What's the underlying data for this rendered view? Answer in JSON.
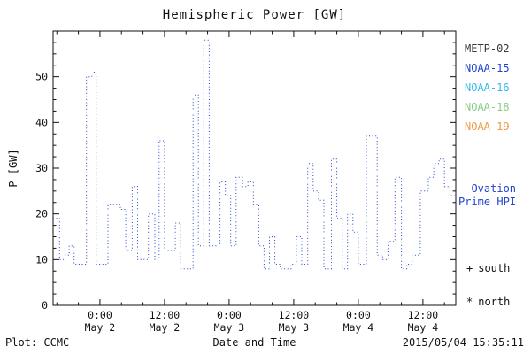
{
  "footer": {
    "left": "Plot: CCMC",
    "right": "2015/05/04 15:35:11"
  },
  "legend": {
    "items": [
      {
        "label": "METP-02",
        "color": "#3a3a3a"
      },
      {
        "label": "NOAA-15",
        "color": "#2244cc"
      },
      {
        "label": "NOAA-16",
        "color": "#33bbee"
      },
      {
        "label": "NOAA-18",
        "color": "#88cc88"
      },
      {
        "label": "NOAA-19",
        "color": "#ee9944"
      }
    ]
  },
  "annotation": {
    "line1": "— Ovation",
    "line2": "Prime HPI",
    "color": "#2244cc"
  },
  "marker_legend": {
    "south": {
      "symbol": "+",
      "label": "south"
    },
    "north": {
      "symbol": "*",
      "label": "north"
    }
  },
  "chart_data": {
    "type": "line",
    "title": "Hemispheric Power [GW]",
    "xlabel": "Date and Time",
    "ylabel": "P [GW]",
    "ylim": [
      0,
      60
    ],
    "xlim_hours": [
      15.3,
      90.1
    ],
    "x_unit": "hours from 2015-05-01 00:00",
    "grid": false,
    "legend_position": "right",
    "y_ticks": [
      0,
      10,
      20,
      30,
      40,
      50
    ],
    "x_ticks": [
      {
        "hour": 24,
        "time": "0:00",
        "date": "May 2"
      },
      {
        "hour": 36,
        "time": "12:00",
        "date": "May 2"
      },
      {
        "hour": 48,
        "time": "0:00",
        "date": "May 3"
      },
      {
        "hour": 60,
        "time": "12:00",
        "date": "May 3"
      },
      {
        "hour": 72,
        "time": "0:00",
        "date": "May 4"
      },
      {
        "hour": 84,
        "time": "12:00",
        "date": "May 4"
      }
    ],
    "series": [
      {
        "name": "Ovation Prime HPI",
        "color": "#2244cc",
        "line_style": "dotted",
        "step": true,
        "x_hours": [
          15.3,
          16.5,
          17.5,
          18.3,
          19.2,
          20.5,
          21.5,
          22.5,
          23.3,
          24.2,
          25.5,
          26.8,
          27.8,
          28.8,
          30.0,
          31.0,
          32.0,
          33.0,
          34.2,
          35.0,
          36.0,
          37.0,
          38.0,
          39.0,
          40.2,
          41.3,
          42.3,
          43.3,
          44.3,
          45.3,
          46.3,
          47.3,
          48.3,
          49.3,
          50.5,
          51.5,
          52.5,
          53.5,
          54.5,
          55.5,
          56.5,
          57.5,
          58.5,
          59.5,
          60.5,
          61.5,
          62.6,
          63.6,
          64.6,
          65.6,
          67.0,
          68.0,
          69.0,
          70.0,
          71.0,
          72.0,
          73.5,
          74.5,
          75.5,
          76.5,
          77.5,
          78.8,
          80.0,
          81.0,
          82.0,
          83.5,
          85.0,
          86.0,
          87.0,
          88.0,
          89.0
        ],
        "values": [
          19,
          10,
          11,
          13,
          9,
          9,
          50,
          51,
          9,
          9,
          22,
          22,
          21,
          12,
          26,
          10,
          10,
          20,
          10,
          36,
          12,
          12,
          18,
          8,
          8,
          46,
          13,
          58,
          13,
          13,
          27,
          24,
          13,
          28,
          26,
          27,
          22,
          13,
          8,
          15,
          9,
          8,
          8,
          9,
          15,
          9,
          31,
          25,
          23,
          8,
          32,
          19,
          8,
          20,
          16,
          9,
          37,
          37,
          11,
          10,
          14,
          28,
          8,
          9,
          11,
          25,
          28,
          31,
          32,
          26,
          24
        ]
      }
    ]
  }
}
